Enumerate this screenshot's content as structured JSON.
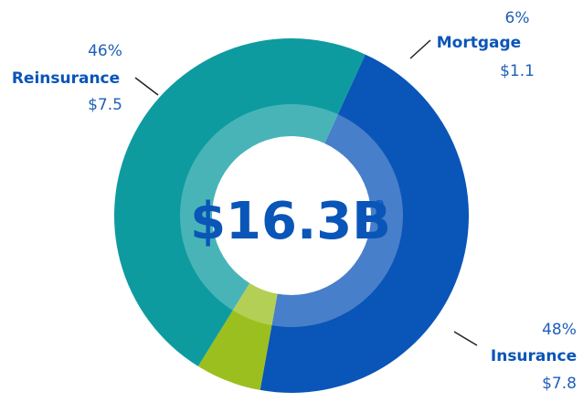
{
  "chart_data": {
    "type": "pie",
    "donut": true,
    "categories": [
      "Reinsurance",
      "Mortgage",
      "Insurance"
    ],
    "values": [
      46,
      6,
      48
    ],
    "value_labels": [
      "46%",
      "6%",
      "48%"
    ],
    "amounts": [
      7.5,
      1.1,
      7.8
    ],
    "amount_labels": [
      "$7.5",
      "$1.1",
      "$7.8"
    ],
    "colors": [
      "#0a55b8",
      "#9bbf1e",
      "#0d9ba0"
    ],
    "total_label": "$16.3B",
    "total_note": "2"
  }
}
